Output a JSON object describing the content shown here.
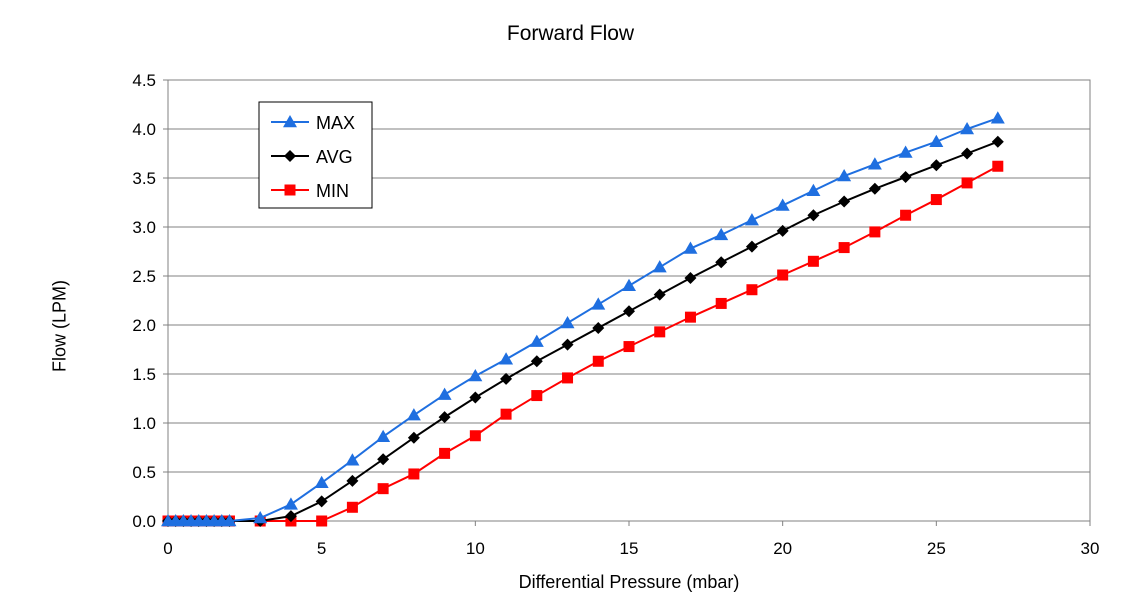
{
  "chart_data": {
    "type": "line",
    "title": "Forward Flow",
    "xlabel": "Differential Pressure (mbar)",
    "ylabel": "Flow (LPM)",
    "xlim": [
      0,
      30
    ],
    "ylim": [
      0,
      4.5
    ],
    "xticks": [
      0,
      5,
      10,
      15,
      20,
      25,
      30
    ],
    "yticks": [
      0.0,
      0.5,
      1.0,
      1.5,
      2.0,
      2.5,
      3.0,
      3.5,
      4.0,
      4.5
    ],
    "ytick_labels": [
      "0.0",
      "0.5",
      "1.0",
      "1.5",
      "2.0",
      "2.5",
      "3.0",
      "3.5",
      "4.0",
      "4.5"
    ],
    "grid": "horizontal",
    "legend_position": "top-left",
    "series": [
      {
        "name": "MAX",
        "color": "#1f6fe0",
        "marker": "triangle",
        "x": [
          0,
          0.25,
          0.5,
          0.75,
          1,
          1.25,
          1.5,
          1.75,
          2,
          3,
          4,
          5,
          6,
          7,
          8,
          9,
          10,
          11,
          12,
          13,
          14,
          15,
          16,
          17,
          18,
          19,
          20,
          21,
          22,
          23,
          24,
          25,
          26,
          27
        ],
        "y": [
          0,
          0,
          0,
          0,
          0,
          0,
          0,
          0,
          0,
          0.03,
          0.17,
          0.39,
          0.62,
          0.86,
          1.08,
          1.29,
          1.48,
          1.65,
          1.83,
          2.02,
          2.21,
          2.4,
          2.59,
          2.78,
          2.92,
          3.07,
          3.22,
          3.37,
          3.52,
          3.64,
          3.76,
          3.87,
          4.0,
          4.11
        ]
      },
      {
        "name": "AVG",
        "color": "#000000",
        "marker": "diamond",
        "x": [
          0,
          0.25,
          0.5,
          0.75,
          1,
          1.25,
          1.5,
          1.75,
          2,
          3,
          4,
          5,
          6,
          7,
          8,
          9,
          10,
          11,
          12,
          13,
          14,
          15,
          16,
          17,
          18,
          19,
          20,
          21,
          22,
          23,
          24,
          25,
          26,
          27
        ],
        "y": [
          0,
          0,
          0,
          0,
          0,
          0,
          0,
          0,
          0,
          0,
          0.05,
          0.2,
          0.41,
          0.63,
          0.85,
          1.06,
          1.26,
          1.45,
          1.63,
          1.8,
          1.97,
          2.14,
          2.31,
          2.48,
          2.64,
          2.8,
          2.96,
          3.12,
          3.26,
          3.39,
          3.51,
          3.63,
          3.75,
          3.87
        ]
      },
      {
        "name": "MIN",
        "color": "#ff0000",
        "marker": "square",
        "x": [
          0,
          0.25,
          0.5,
          0.75,
          1,
          1.25,
          1.5,
          1.75,
          2,
          3,
          4,
          5,
          6,
          7,
          8,
          9,
          10,
          11,
          12,
          13,
          14,
          15,
          16,
          17,
          18,
          19,
          20,
          21,
          22,
          23,
          24,
          25,
          26,
          27
        ],
        "y": [
          0,
          0,
          0,
          0,
          0,
          0,
          0,
          0,
          0,
          0,
          0,
          0,
          0.14,
          0.33,
          0.48,
          0.69,
          0.87,
          1.09,
          1.28,
          1.46,
          1.63,
          1.78,
          1.93,
          2.08,
          2.22,
          2.36,
          2.51,
          2.65,
          2.79,
          2.95,
          3.12,
          3.28,
          3.45,
          3.62
        ]
      }
    ]
  }
}
